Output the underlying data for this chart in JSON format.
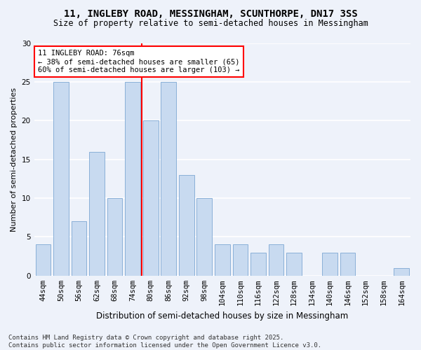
{
  "title1": "11, INGLEBY ROAD, MESSINGHAM, SCUNTHORPE, DN17 3SS",
  "title2": "Size of property relative to semi-detached houses in Messingham",
  "xlabel": "Distribution of semi-detached houses by size in Messingham",
  "ylabel": "Number of semi-detached properties",
  "categories": [
    "44sqm",
    "50sqm",
    "56sqm",
    "62sqm",
    "68sqm",
    "74sqm",
    "80sqm",
    "86sqm",
    "92sqm",
    "98sqm",
    "104sqm",
    "110sqm",
    "116sqm",
    "122sqm",
    "128sqm",
    "134sqm",
    "140sqm",
    "146sqm",
    "152sqm",
    "158sqm",
    "164sqm"
  ],
  "values": [
    4,
    25,
    7,
    16,
    10,
    25,
    20,
    25,
    13,
    10,
    4,
    4,
    3,
    4,
    3,
    0,
    3,
    3,
    0,
    0,
    1
  ],
  "bar_color": "#c8daf0",
  "bar_edge_color": "#8ab0d8",
  "red_line_index": 5,
  "annotation_title": "11 INGLEBY ROAD: 76sqm",
  "annotation_line1": "← 38% of semi-detached houses are smaller (65)",
  "annotation_line2": "60% of semi-detached houses are larger (103) →",
  "ylim": [
    0,
    30
  ],
  "yticks": [
    0,
    5,
    10,
    15,
    20,
    25,
    30
  ],
  "footer1": "Contains HM Land Registry data © Crown copyright and database right 2025.",
  "footer2": "Contains public sector information licensed under the Open Government Licence v3.0.",
  "bg_color": "#eef2fa",
  "plot_bg_color": "#eef2fa",
  "grid_color": "#ffffff",
  "title1_fontsize": 10,
  "title2_fontsize": 8.5,
  "ylabel_fontsize": 8,
  "xlabel_fontsize": 8.5,
  "tick_fontsize": 7.5,
  "annot_fontsize": 7.5,
  "footer_fontsize": 6.5
}
